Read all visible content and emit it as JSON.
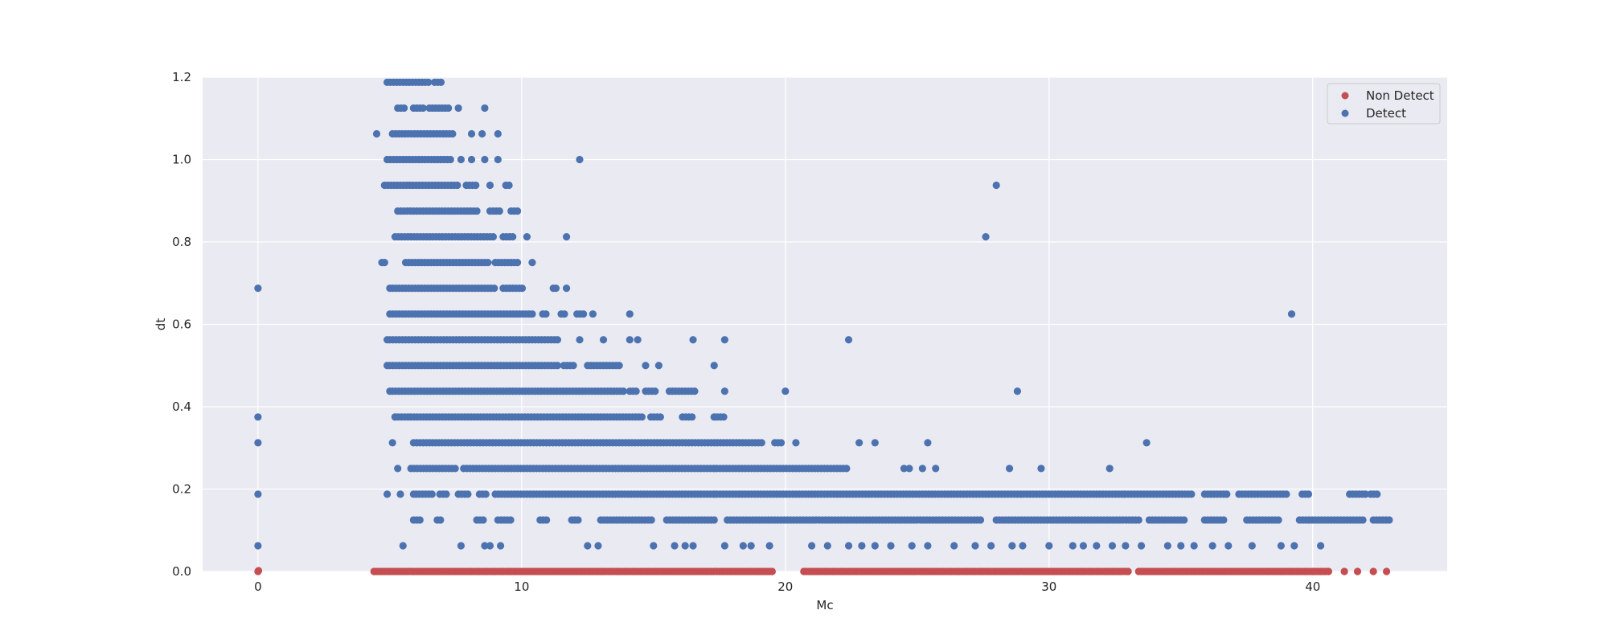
{
  "chart_data": {
    "type": "scatter",
    "title": "",
    "xlabel": "Mc",
    "ylabel": "dt",
    "xlim": [
      -2.1,
      45.1
    ],
    "ylim": [
      0.0,
      1.2
    ],
    "x_ticks": [
      0,
      10,
      20,
      30,
      40
    ],
    "x_tick_labels": [
      "0",
      "10",
      "20",
      "30",
      "40"
    ],
    "y_ticks": [
      0.0,
      0.2,
      0.4,
      0.6,
      0.8,
      1.0,
      1.2
    ],
    "y_tick_labels": [
      "0.0",
      "0.2",
      "0.4",
      "0.6",
      "0.8",
      "1.0",
      "1.2"
    ],
    "grid": true,
    "legend_position": "top-right",
    "dt_step": 0.0625,
    "series": [
      {
        "name": "Non Detect",
        "color": "#c44e52",
        "marker": "circle",
        "points": [
          [
            0,
            0
          ],
          [
            0.02,
            0.002
          ]
        ],
        "bands": [
          {
            "y": 0.0,
            "x_ranges": [
              [
                4.4,
                19.5
              ],
              [
                20.7,
                33.0
              ],
              [
                33.4,
                40.6
              ]
            ],
            "step": 0.1
          },
          {
            "y": 0.0,
            "x_ranges": [
              [
                41.2,
                41.2
              ],
              [
                41.7,
                41.7
              ],
              [
                42.3,
                42.3
              ],
              [
                42.8,
                42.8
              ]
            ],
            "step": 0.1
          }
        ]
      },
      {
        "name": "Detect",
        "color": "#4c72b0",
        "marker": "circle",
        "points": [
          [
            0,
            0.0625
          ],
          [
            0,
            0.1875
          ],
          [
            0,
            0.3125
          ],
          [
            0,
            0.375
          ],
          [
            0,
            0.6875
          ],
          [
            5.5,
            0.0625
          ],
          [
            7.7,
            0.0625
          ],
          [
            8.6,
            0.0625
          ],
          [
            8.8,
            0.0625
          ],
          [
            9.2,
            0.0625
          ],
          [
            12.5,
            0.0625
          ],
          [
            12.9,
            0.0625
          ],
          [
            15.0,
            0.0625
          ],
          [
            15.8,
            0.0625
          ],
          [
            16.2,
            0.0625
          ],
          [
            16.5,
            0.0625
          ],
          [
            17.7,
            0.0625
          ],
          [
            18.4,
            0.0625
          ],
          [
            18.7,
            0.0625
          ],
          [
            19.4,
            0.0625
          ],
          [
            21.0,
            0.0625
          ],
          [
            21.6,
            0.0625
          ],
          [
            22.4,
            0.0625
          ],
          [
            22.9,
            0.0625
          ],
          [
            23.4,
            0.0625
          ],
          [
            24.0,
            0.0625
          ],
          [
            24.8,
            0.0625
          ],
          [
            25.4,
            0.0625
          ],
          [
            26.4,
            0.0625
          ],
          [
            27.2,
            0.0625
          ],
          [
            27.8,
            0.0625
          ],
          [
            28.6,
            0.0625
          ],
          [
            29.0,
            0.0625
          ],
          [
            30.0,
            0.0625
          ],
          [
            30.9,
            0.0625
          ],
          [
            31.3,
            0.0625
          ],
          [
            31.8,
            0.0625
          ],
          [
            32.4,
            0.0625
          ],
          [
            32.9,
            0.0625
          ],
          [
            33.5,
            0.0625
          ],
          [
            34.5,
            0.0625
          ],
          [
            35.0,
            0.0625
          ],
          [
            35.5,
            0.0625
          ],
          [
            36.2,
            0.0625
          ],
          [
            36.8,
            0.0625
          ],
          [
            37.7,
            0.0625
          ],
          [
            38.8,
            0.0625
          ],
          [
            39.3,
            0.0625
          ],
          [
            40.3,
            0.0625
          ],
          [
            4.9,
            0.1875
          ],
          [
            5.4,
            0.1875
          ],
          [
            5.9,
            0.1875
          ],
          [
            5.3,
            0.25
          ],
          [
            5.1,
            0.3125
          ],
          [
            23.4,
            0.3125
          ],
          [
            22.8,
            0.3125
          ],
          [
            25.4,
            0.3125
          ],
          [
            33.7,
            0.3125
          ],
          [
            28.5,
            0.25
          ],
          [
            29.7,
            0.25
          ],
          [
            32.3,
            0.25
          ],
          [
            24.5,
            0.25
          ],
          [
            24.7,
            0.25
          ],
          [
            25.2,
            0.25
          ],
          [
            25.7,
            0.25
          ],
          [
            20.0,
            0.4375
          ],
          [
            28.8,
            0.4375
          ],
          [
            17.7,
            0.4375
          ],
          [
            14.1,
            0.5625
          ],
          [
            14.4,
            0.5625
          ],
          [
            16.5,
            0.5625
          ],
          [
            17.7,
            0.5625
          ],
          [
            22.4,
            0.5625
          ],
          [
            13.1,
            0.5625
          ],
          [
            12.2,
            0.5625
          ],
          [
            17.3,
            0.5
          ],
          [
            14.7,
            0.5
          ],
          [
            15.2,
            0.5
          ],
          [
            14.1,
            0.625
          ],
          [
            39.2,
            0.625
          ],
          [
            11.3,
            0.6875
          ],
          [
            11.7,
            0.6875
          ],
          [
            11.2,
            0.6875
          ],
          [
            11.7,
            0.8125
          ],
          [
            27.6,
            0.8125
          ],
          [
            10.2,
            0.8125
          ],
          [
            12.2,
            1.0
          ],
          [
            28.0,
            0.9375
          ],
          [
            10.4,
            0.75
          ],
          [
            4.7,
            0.75
          ],
          [
            4.8,
            0.75
          ],
          [
            9.1,
            1.0
          ],
          [
            8.6,
            1.0
          ],
          [
            8.1,
            1.0
          ],
          [
            7.7,
            1.0
          ],
          [
            9.1,
            1.0625
          ],
          [
            8.5,
            1.0625
          ],
          [
            8.1,
            1.0625
          ],
          [
            4.5,
            1.0625
          ],
          [
            8.6,
            1.125
          ],
          [
            7.6,
            1.125
          ],
          [
            4.9,
            0.5625
          ],
          [
            4.9,
            0.5
          ],
          [
            5.0,
            0.4375
          ],
          [
            5.2,
            0.375
          ]
        ],
        "bands": [
          {
            "y": 0.125,
            "x_ranges": [
              [
                5.9,
                6.2
              ],
              [
                6.8,
                7.0
              ],
              [
                8.3,
                8.6
              ],
              [
                9.1,
                9.6
              ],
              [
                10.7,
                11.0
              ],
              [
                11.9,
                12.2
              ],
              [
                13.0,
                15.0
              ],
              [
                15.5,
                17.4
              ],
              [
                17.8,
                27.5
              ],
              [
                28.0,
                33.4
              ],
              [
                33.8,
                35.2
              ],
              [
                35.9,
                36.7
              ],
              [
                37.5,
                38.8
              ],
              [
                39.5,
                42.0
              ],
              [
                42.3,
                42.9
              ]
            ],
            "step": 0.12
          },
          {
            "y": 0.1875,
            "x_ranges": [
              [
                6.0,
                6.6
              ],
              [
                6.9,
                7.2
              ],
              [
                7.6,
                8.0
              ],
              [
                8.4,
                8.7
              ],
              [
                9.0,
                35.4
              ],
              [
                35.9,
                36.8
              ],
              [
                37.2,
                39.0
              ],
              [
                39.6,
                39.9
              ],
              [
                41.4,
                42.0
              ],
              [
                42.2,
                42.5
              ]
            ],
            "step": 0.12
          },
          {
            "y": 0.25,
            "x_ranges": [
              [
                5.8,
                7.5
              ],
              [
                7.8,
                22.4
              ]
            ],
            "step": 0.12
          },
          {
            "y": 0.3125,
            "x_ranges": [
              [
                5.9,
                19.1
              ],
              [
                19.6,
                19.9
              ],
              [
                20.4,
                20.4
              ]
            ],
            "step": 0.12
          },
          {
            "y": 0.375,
            "x_ranges": [
              [
                5.2,
                14.6
              ],
              [
                14.9,
                15.3
              ],
              [
                16.1,
                16.5
              ],
              [
                17.3,
                17.7
              ]
            ],
            "step": 0.12
          },
          {
            "y": 0.4375,
            "x_ranges": [
              [
                5.1,
                13.9
              ],
              [
                14.1,
                14.4
              ],
              [
                14.7,
                15.1
              ],
              [
                15.6,
                16.6
              ]
            ],
            "step": 0.12
          },
          {
            "y": 0.5,
            "x_ranges": [
              [
                5.0,
                11.4
              ],
              [
                11.6,
                12.0
              ],
              [
                12.5,
                13.7
              ]
            ],
            "step": 0.12
          },
          {
            "y": 0.5625,
            "x_ranges": [
              [
                5.0,
                11.4
              ]
            ],
            "step": 0.12
          },
          {
            "y": 0.625,
            "x_ranges": [
              [
                5.0,
                10.5
              ],
              [
                10.8,
                11.0
              ],
              [
                11.5,
                11.7
              ],
              [
                12.1,
                12.4
              ],
              [
                12.7,
                12.8
              ]
            ],
            "step": 0.12
          },
          {
            "y": 0.6875,
            "x_ranges": [
              [
                5.0,
                9.0
              ],
              [
                9.3,
                10.1
              ]
            ],
            "step": 0.12
          },
          {
            "y": 0.75,
            "x_ranges": [
              [
                5.6,
                8.8
              ],
              [
                9.0,
                9.9
              ]
            ],
            "step": 0.12
          },
          {
            "y": 0.8125,
            "x_ranges": [
              [
                5.2,
                9.0
              ],
              [
                9.3,
                9.7
              ]
            ],
            "step": 0.12
          },
          {
            "y": 0.875,
            "x_ranges": [
              [
                5.3,
                8.3
              ],
              [
                8.8,
                9.2
              ],
              [
                9.6,
                9.9
              ]
            ],
            "step": 0.12
          },
          {
            "y": 0.9375,
            "x_ranges": [
              [
                4.8,
                7.6
              ],
              [
                7.9,
                8.3
              ],
              [
                8.8,
                8.9
              ],
              [
                9.4,
                9.6
              ]
            ],
            "step": 0.12
          },
          {
            "y": 1.0,
            "x_ranges": [
              [
                4.9,
                7.3
              ]
            ],
            "step": 0.12
          },
          {
            "y": 1.0625,
            "x_ranges": [
              [
                5.1,
                7.4
              ]
            ],
            "step": 0.12
          },
          {
            "y": 1.125,
            "x_ranges": [
              [
                5.3,
                5.6
              ],
              [
                5.9,
                6.3
              ],
              [
                6.5,
                7.3
              ]
            ],
            "step": 0.12
          },
          {
            "y": 1.1875,
            "x_ranges": [
              [
                4.9,
                6.5
              ],
              [
                6.7,
                7.0
              ]
            ],
            "step": 0.12
          }
        ]
      }
    ]
  }
}
